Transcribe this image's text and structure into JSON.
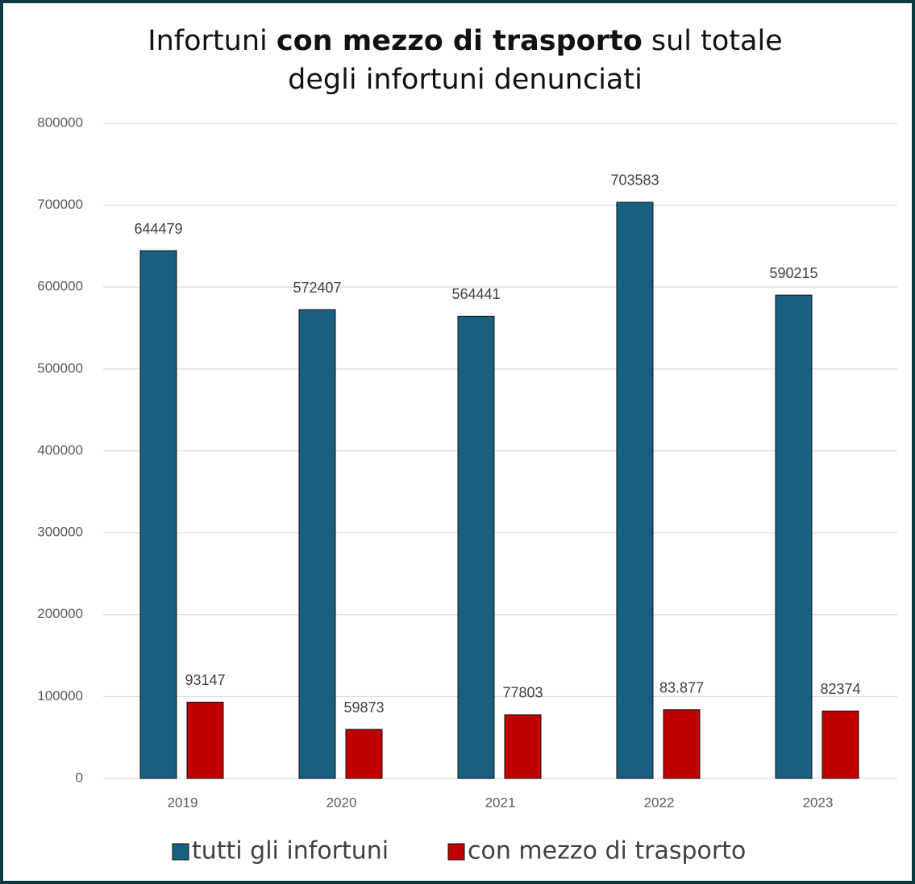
{
  "chart_data": {
    "type": "bar",
    "title": [
      [
        {
          "text": "Infortuni "
        },
        {
          "text": "con mezzo di trasporto",
          "bold": true
        },
        {
          "text": " sul totale"
        }
      ],
      [
        {
          "text": "degli infortuni denunciati"
        }
      ]
    ],
    "categories": [
      "2019",
      "2020",
      "2021",
      "2022",
      "2023"
    ],
    "series": [
      {
        "name": "tutti gli infortuni",
        "color": "#17607f",
        "values": [
          644479,
          572407,
          564441,
          703583,
          590215
        ]
      },
      {
        "name": "con mezzo di trasporto",
        "color": "#c00000",
        "values": [
          93147,
          59873,
          77803,
          83877,
          82374
        ],
        "value_labels": [
          "93147",
          "59873",
          "77803",
          "83.877",
          "82374"
        ]
      }
    ],
    "ylim": [
      0,
      800000
    ],
    "yticks": [
      0,
      100000,
      200000,
      300000,
      400000,
      500000,
      600000,
      700000,
      800000
    ],
    "grid": true,
    "legend": "bottom"
  }
}
